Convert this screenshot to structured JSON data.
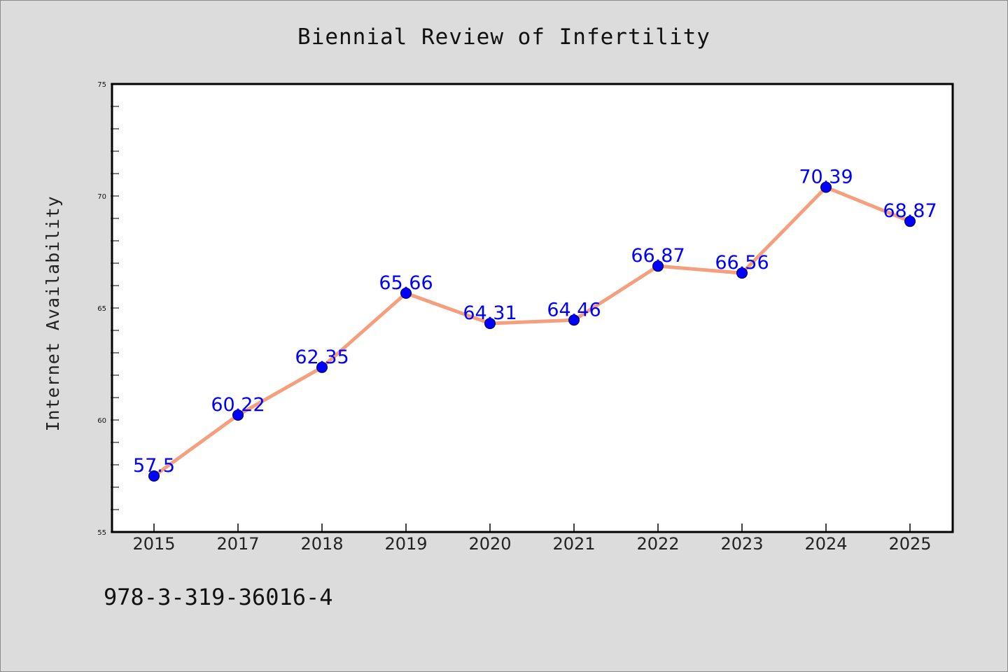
{
  "chart_data": {
    "type": "line",
    "title": "Biennial Review of Infertility",
    "xlabel": "",
    "ylabel": "Internet Availability",
    "categories": [
      "2015",
      "2017",
      "2018",
      "2019",
      "2020",
      "2021",
      "2022",
      "2023",
      "2024",
      "2025"
    ],
    "values": [
      57.5,
      60.22,
      62.35,
      65.66,
      64.31,
      64.46,
      66.87,
      66.56,
      70.39,
      68.87
    ],
    "data_labels": [
      "57.5",
      "60.22",
      "62.35",
      "65.66",
      "64.31",
      "64.46",
      "66.87",
      "66.56",
      "70.39",
      "68.87"
    ],
    "ylim": [
      55,
      75
    ],
    "yticks": [
      "55",
      "60",
      "65",
      "70",
      "75"
    ],
    "grid": false,
    "legend": "none",
    "colors": {
      "line": "#f4a07e",
      "marker": "#0000ff",
      "data_label": "#0000ff",
      "background": "#dcdcdc",
      "plot_area": "#ffffff"
    }
  },
  "footer": {
    "isbn": "978-3-319-36016-4"
  }
}
